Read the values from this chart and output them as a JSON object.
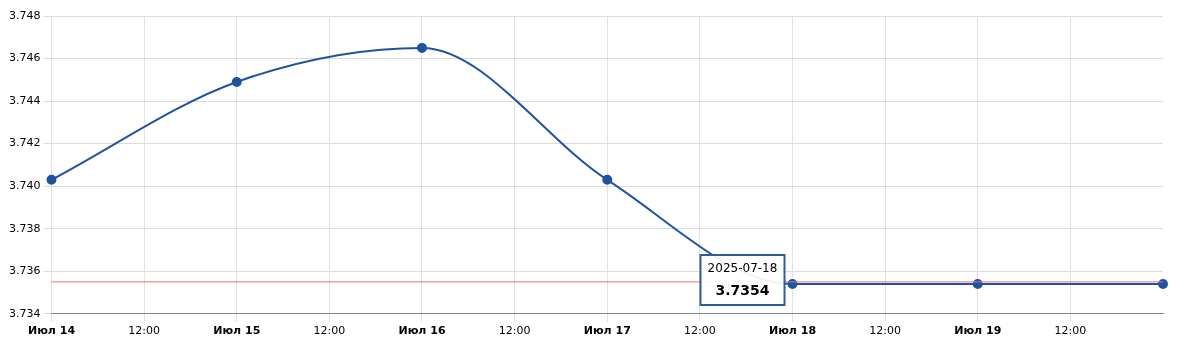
{
  "chart_data": {
    "type": "line",
    "x": [
      "2025-07-14",
      "2025-07-15",
      "2025-07-16",
      "2025-07-17",
      "2025-07-18",
      "2025-07-19",
      "2025-07-20"
    ],
    "series": [
      {
        "color": "#1f53a0",
        "values": [
          3.7403,
          3.7449,
          3.7465,
          3.7403,
          3.7354,
          3.7354,
          3.7354
        ]
      }
    ],
    "xlim": [
      "2025-07-14",
      "2025-07-20"
    ],
    "xticks": [
      {
        "value": "2025-07-14",
        "label": "Июл 14"
      },
      {
        "value": "2025-07-14T12:00",
        "label": "12:00"
      },
      {
        "value": "2025-07-15",
        "label": "Июл 15"
      },
      {
        "value": "2025-07-15T12:00",
        "label": "12:00"
      },
      {
        "value": "2025-07-16",
        "label": "Июл 16"
      },
      {
        "value": "2025-07-16T12:00",
        "label": "12:00"
      },
      {
        "value": "2025-07-17",
        "label": "Июл 17"
      },
      {
        "value": "2025-07-17T12:00",
        "label": "12:00"
      },
      {
        "value": "2025-07-18",
        "label": "Июл 18"
      },
      {
        "value": "2025-07-18T12:00",
        "label": "12:00"
      },
      {
        "value": "2025-07-19",
        "label": "Июл 19"
      },
      {
        "value": "2025-07-19T12:00",
        "label": "12:00"
      }
    ],
    "ylim": [
      3.734,
      3.748
    ],
    "yticks": [
      3.734,
      3.736,
      3.738,
      {
        "value": 3.74,
        "label": "3.740"
      },
      3.742,
      3.744,
      3.746,
      3.748
    ],
    "ref_lines": [
      {
        "axis": "y",
        "value": 3.7355,
        "color": "#e87070"
      }
    ],
    "annotations": [
      {
        "text": "2025-07-18\n3.7354",
        "x": "2025-07-18",
        "y": 3.7354
      }
    ],
    "grid": true,
    "legend": false,
    "marker": "circle",
    "line_style": "solid"
  }
}
